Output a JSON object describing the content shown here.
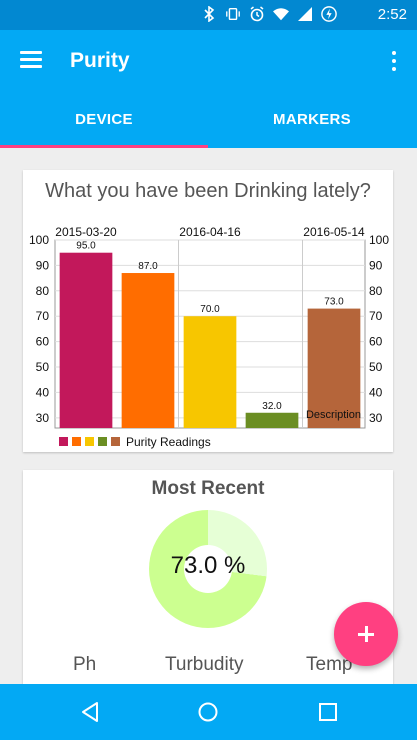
{
  "status_bar": {
    "time": "2:52",
    "icons": [
      "bluetooth-icon",
      "vibrate-icon",
      "alarm-icon",
      "wifi-icon",
      "signal-icon",
      "battery-charging-icon"
    ]
  },
  "app_bar": {
    "title": "Purity",
    "menu_icon": "menu-icon",
    "overflow_icon": "more-vert-icon"
  },
  "tabs": [
    {
      "label": "DEVICE",
      "selected": true
    },
    {
      "label": "MARKERS",
      "selected": false
    }
  ],
  "colors": {
    "primary": "#03a9f4",
    "primary_dark": "#0288d1",
    "accent": "#ff4081",
    "donut": "#ccff90",
    "donut_light": "#e6ffd6"
  },
  "chart_data": {
    "type": "bar",
    "title": "What you have been Drinking lately?",
    "x_top_labels": [
      "2015-03-20",
      "2016-04-16",
      "2016-05-14"
    ],
    "values": [
      95.0,
      87.0,
      70.0,
      32.0,
      73.0
    ],
    "value_labels": [
      "95.0",
      "87.0",
      "70.0",
      "32.0",
      "73.0"
    ],
    "colors": [
      "#c2185b",
      "#ff6d00",
      "#f7c600",
      "#6b8e23",
      "#b5653a"
    ],
    "ylim": [
      26,
      100
    ],
    "yticks": [
      "100",
      "90",
      "80",
      "70",
      "60",
      "50",
      "40",
      "30"
    ],
    "legend": "Purity Readings",
    "description": "Description",
    "grid": true
  },
  "recent": {
    "title": "Most Recent",
    "value_label": "73.0 %",
    "value": 73.0,
    "columns": [
      "Ph",
      "Turbudity",
      "Temp"
    ]
  },
  "fab_icon": "add-icon",
  "nav": [
    "back-icon",
    "home-icon",
    "recents-icon"
  ]
}
